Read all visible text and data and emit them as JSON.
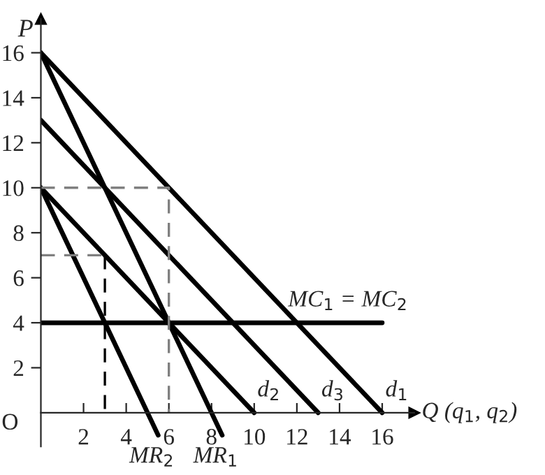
{
  "chart_data": {
    "type": "line",
    "xlabel": "Q (q$_{1}$, q$_{2}$)",
    "ylabel": "P",
    "series": [
      {
        "name": "d$_{1}$",
        "color": "#000000",
        "x": [
          0,
          16
        ],
        "values": [
          16,
          0
        ]
      },
      {
        "name": "MR$_{1}$",
        "color": "#000000",
        "x": [
          0,
          8.5
        ],
        "values": [
          16,
          -1
        ]
      },
      {
        "name": "d$_{3}$",
        "color": "#000000",
        "x": [
          0,
          13
        ],
        "values": [
          13,
          0
        ]
      },
      {
        "name": "d$_{2}$",
        "color": "#000000",
        "x": [
          0,
          10
        ],
        "values": [
          10,
          0
        ]
      },
      {
        "name": "MR$_{2}$",
        "color": "#000000",
        "x": [
          0,
          5.5
        ],
        "values": [
          10,
          -1
        ]
      },
      {
        "name": "MC$_{1}$ = MC$_{2}$",
        "color": "#000000",
        "x": [
          0,
          16
        ],
        "values": [
          4,
          4
        ]
      },
      {
        "color": "#808080",
        "line_style": "dashed",
        "x": [
          0,
          6,
          6
        ],
        "values": [
          10,
          10,
          0
        ]
      },
      {
        "color": "#808080",
        "line_style": "dashed",
        "x": [
          0,
          3
        ],
        "values": [
          7,
          7
        ]
      },
      {
        "color": "#000000",
        "line_style": "dashed",
        "x": [
          3,
          3
        ],
        "values": [
          7,
          0
        ]
      }
    ],
    "xlim": [
      0,
      17.5
    ],
    "ylim": [
      -1.5,
      17.5
    ],
    "xticks": [
      2,
      4,
      6,
      8,
      10,
      12,
      14,
      16
    ],
    "yticks": [
      2,
      4,
      6,
      8,
      10,
      12,
      14,
      16
    ],
    "annotations": [
      "O"
    ],
    "grid": false,
    "marker": "none"
  }
}
